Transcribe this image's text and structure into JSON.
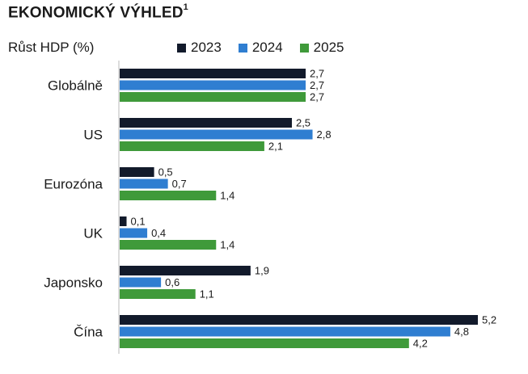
{
  "header": {
    "title": "EKONOMICKÝ VÝHLED",
    "title_superscript": "1",
    "unit_label": "Růst HDP (%)"
  },
  "chart_data": {
    "type": "bar",
    "orientation": "horizontal",
    "categories": [
      "Globálně",
      "US",
      "Eurozóna",
      "UK",
      "Japonsko",
      "Čína"
    ],
    "series": [
      {
        "name": "2023",
        "color": "#121a2b",
        "values": [
          2.7,
          2.5,
          0.5,
          0.1,
          1.9,
          5.2
        ]
      },
      {
        "name": "2024",
        "color": "#2f7ed1",
        "values": [
          2.7,
          2.8,
          0.7,
          0.4,
          0.6,
          4.8
        ]
      },
      {
        "name": "2025",
        "color": "#3f9a3a",
        "values": [
          2.7,
          2.1,
          1.4,
          1.4,
          1.1,
          4.2
        ]
      }
    ],
    "value_labels": [
      [
        "2,7",
        "2,5",
        "0,5",
        "0,1",
        "1,9",
        "5,2"
      ],
      [
        "2,7",
        "2,8",
        "0,7",
        "0,4",
        "0,6",
        "4,8"
      ],
      [
        "2,7",
        "2,1",
        "1,4",
        "1,4",
        "1,1",
        "4,2"
      ]
    ],
    "xlim": [
      0,
      5.2
    ],
    "grid": false,
    "legend_position": "top"
  }
}
